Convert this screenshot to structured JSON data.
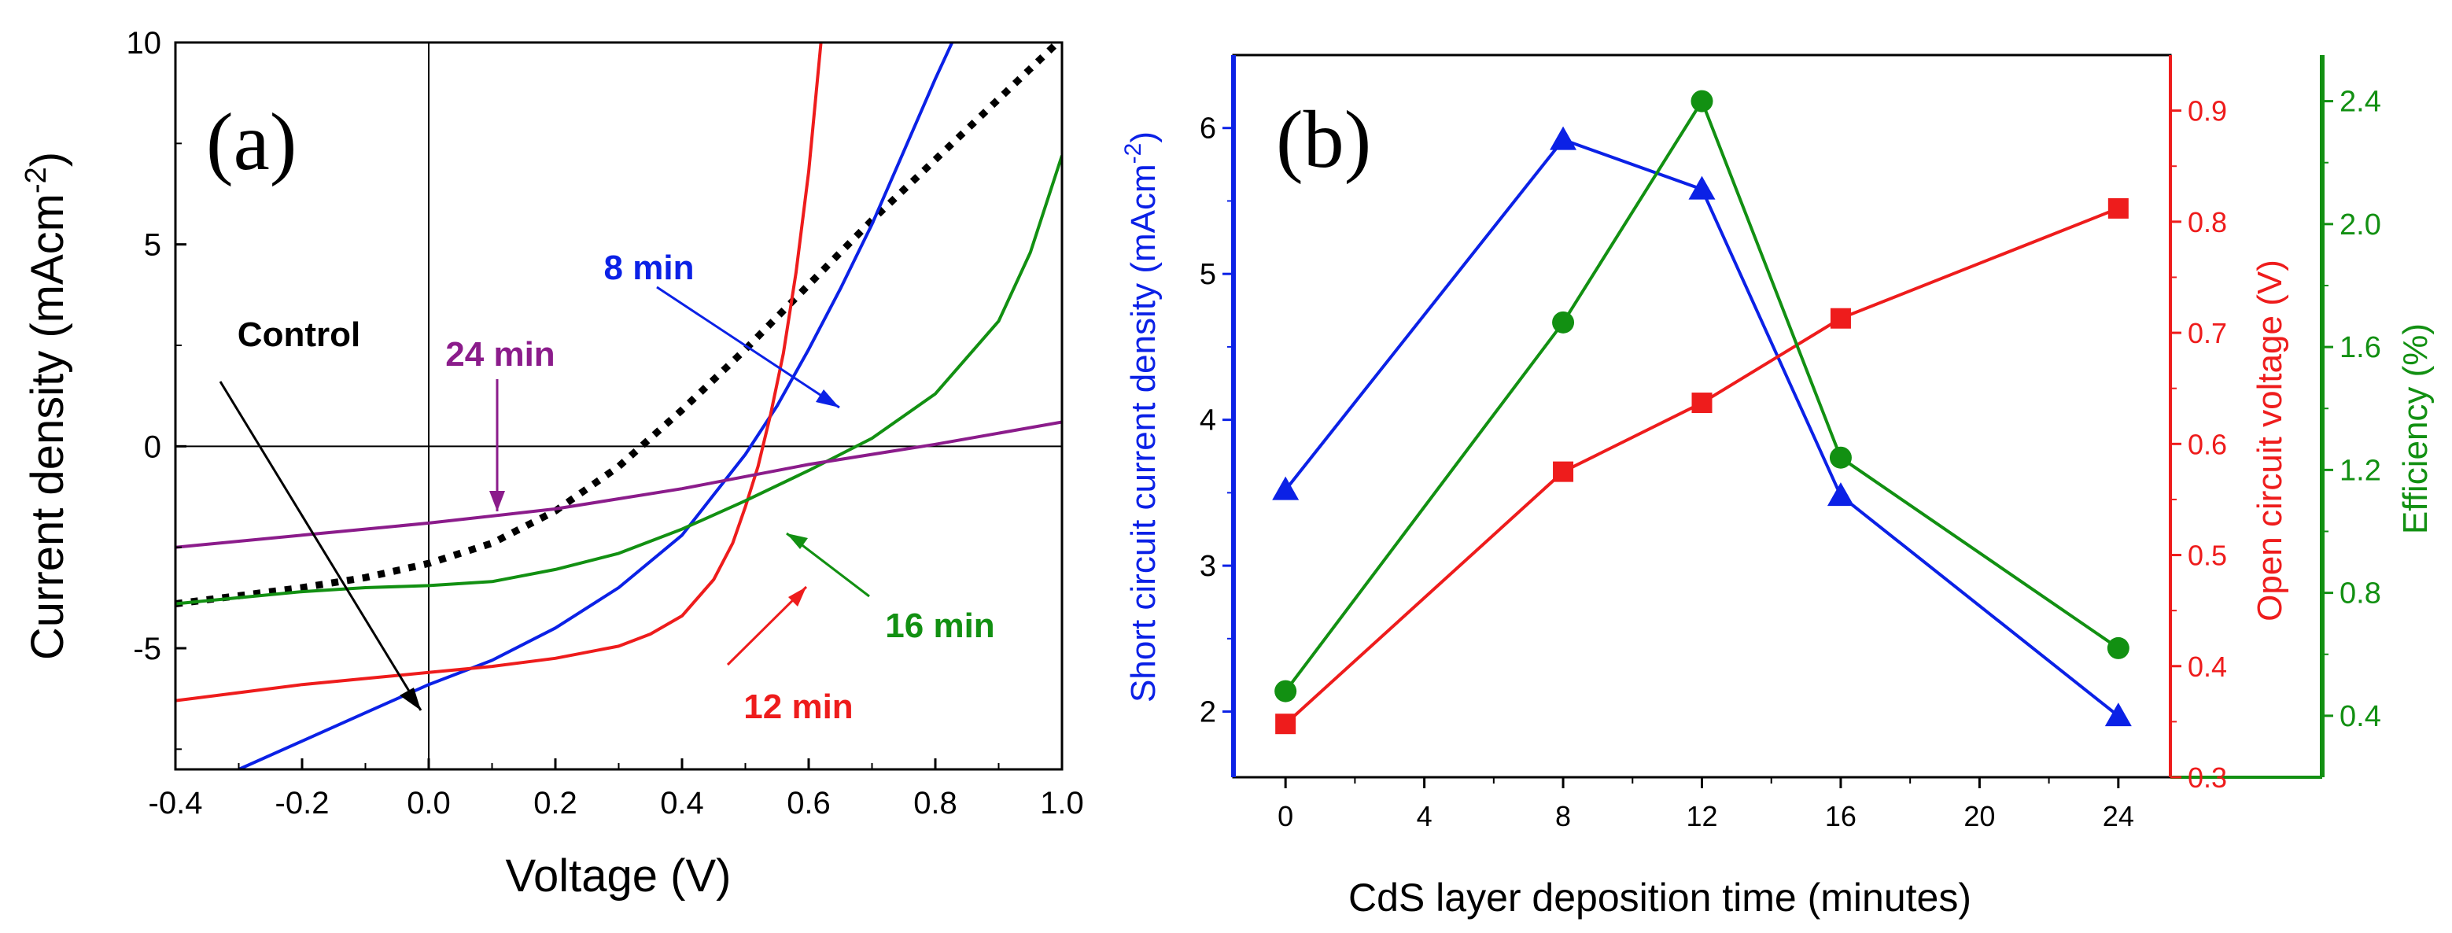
{
  "chart_data": [
    {
      "type": "line",
      "panel_label": "(a)",
      "xlabel": "Voltage (V)",
      "ylabel_main": "Current density (mAcm",
      "ylabel_sup": "-2",
      "ylabel_tail": ")",
      "xlim": [
        -0.4,
        1.0
      ],
      "ylim": [
        -8,
        10
      ],
      "x_ticks": [
        -0.4,
        -0.2,
        0.0,
        0.2,
        0.4,
        0.6,
        0.8,
        1.0
      ],
      "x_tick_labels": [
        "-0.4",
        "-0.2",
        "0.0",
        "0.2",
        "0.4",
        "0.6",
        "0.8",
        "1.0"
      ],
      "y_ticks": [
        -5,
        0,
        5,
        10
      ],
      "y_tick_labels": [
        "-5",
        "0",
        "5",
        "10"
      ],
      "series": [
        {
          "name": "Control",
          "color": "#000000",
          "style": "dotted",
          "x": [
            -0.4,
            -0.3,
            -0.2,
            -0.1,
            0.0,
            0.1,
            0.2,
            0.3,
            0.4,
            0.5,
            0.6,
            0.7,
            0.8,
            0.9,
            1.0
          ],
          "y": [
            -3.9,
            -3.7,
            -3.5,
            -3.25,
            -2.9,
            -2.4,
            -1.6,
            -0.5,
            0.9,
            2.4,
            4.0,
            5.6,
            7.1,
            8.6,
            10.1
          ]
        },
        {
          "name": "8 min",
          "color": "#0b21e6",
          "style": "solid",
          "x": [
            -0.3,
            -0.2,
            -0.1,
            0.0,
            0.1,
            0.2,
            0.3,
            0.4,
            0.45,
            0.5,
            0.55,
            0.6,
            0.65,
            0.7,
            0.75,
            0.8,
            0.85
          ],
          "y": [
            -8.0,
            -7.3,
            -6.6,
            -5.9,
            -5.3,
            -4.5,
            -3.5,
            -2.2,
            -1.2,
            -0.2,
            1.0,
            2.4,
            3.9,
            5.5,
            7.3,
            9.1,
            10.8
          ]
        },
        {
          "name": "12 min",
          "color": "#ee1c1c",
          "style": "solid",
          "x": [
            -0.4,
            -0.3,
            -0.2,
            -0.1,
            0.0,
            0.1,
            0.2,
            0.3,
            0.35,
            0.4,
            0.45,
            0.48,
            0.5,
            0.52,
            0.54,
            0.56,
            0.58,
            0.6,
            0.62
          ],
          "y": [
            -6.3,
            -6.1,
            -5.9,
            -5.75,
            -5.6,
            -5.45,
            -5.25,
            -4.95,
            -4.65,
            -4.2,
            -3.3,
            -2.4,
            -1.5,
            -0.5,
            0.8,
            2.3,
            4.3,
            6.8,
            10.1
          ]
        },
        {
          "name": "16 min",
          "color": "#129012",
          "style": "solid",
          "x": [
            -0.4,
            -0.3,
            -0.2,
            -0.1,
            0.0,
            0.1,
            0.2,
            0.3,
            0.4,
            0.5,
            0.6,
            0.7,
            0.8,
            0.9,
            0.95,
            1.0
          ],
          "y": [
            -3.9,
            -3.75,
            -3.6,
            -3.5,
            -3.45,
            -3.35,
            -3.05,
            -2.65,
            -2.05,
            -1.35,
            -0.6,
            0.2,
            1.3,
            3.1,
            4.8,
            7.2
          ]
        },
        {
          "name": "24 min",
          "color": "#8b1c8b",
          "style": "solid",
          "x": [
            -0.4,
            -0.2,
            0.0,
            0.2,
            0.4,
            0.6,
            0.8,
            1.0
          ],
          "y": [
            -2.5,
            -2.2,
            -1.9,
            -1.55,
            -1.05,
            -0.45,
            0.05,
            0.6
          ]
        }
      ],
      "annotations": [
        {
          "text": "Control",
          "color": "#000000"
        },
        {
          "text": "8 min",
          "color": "#0b21e6"
        },
        {
          "text": "24 min",
          "color": "#8b1c8b"
        },
        {
          "text": "12 min",
          "color": "#ee1c1c"
        },
        {
          "text": "16 min",
          "color": "#129012"
        }
      ]
    },
    {
      "type": "line",
      "panel_label": "(b)",
      "xlabel": "CdS layer deposition time (minutes)",
      "ylabel_left_main": "Short circuit current density (mAcm",
      "ylabel_left_sup": "-2",
      "ylabel_left_tail": ")",
      "ylabel_right1": "Open circuit voltage (V)",
      "ylabel_right2": "Efficiency (%)",
      "xlim": [
        -1.5,
        25.5
      ],
      "x_ticks": [
        0,
        4,
        8,
        12,
        16,
        20,
        24
      ],
      "x_tick_labels": [
        "0",
        "4",
        "8",
        "12",
        "16",
        "20",
        "24"
      ],
      "y_left_lim": [
        1.55,
        6.5
      ],
      "y_left_ticks": [
        2,
        3,
        4,
        5,
        6
      ],
      "y_left_tick_labels": [
        "2",
        "3",
        "4",
        "5",
        "6"
      ],
      "y_right1_lim": [
        0.3,
        0.95
      ],
      "y_right1_ticks": [
        0.3,
        0.4,
        0.5,
        0.6,
        0.7,
        0.8,
        0.9
      ],
      "y_right1_tick_labels": [
        "0.3",
        "0.4",
        "0.5",
        "0.6",
        "0.7",
        "0.8",
        "0.9"
      ],
      "y_right2_lim": [
        0.2,
        2.55
      ],
      "y_right2_ticks": [
        0.4,
        0.8,
        1.2,
        1.6,
        2.0,
        2.4
      ],
      "y_right2_tick_labels": [
        "0.4",
        "0.8",
        "1.2",
        "1.6",
        "2.0",
        "2.4"
      ],
      "series": [
        {
          "name": "Short circuit current density",
          "axis": "left",
          "color": "#0b21e6",
          "marker": "triangle",
          "x": [
            0,
            8,
            12,
            16,
            24
          ],
          "y": [
            3.52,
            5.92,
            5.58,
            3.48,
            1.97
          ]
        },
        {
          "name": "Open circuit voltage",
          "axis": "right1",
          "color": "#ee1c1c",
          "marker": "square",
          "x": [
            0,
            8,
            12,
            16,
            24
          ],
          "y": [
            0.348,
            0.575,
            0.637,
            0.713,
            0.812
          ]
        },
        {
          "name": "Efficiency",
          "axis": "right2",
          "color": "#129012",
          "marker": "circle",
          "x": [
            0,
            8,
            12,
            16,
            24
          ],
          "y": [
            0.48,
            1.68,
            2.4,
            1.24,
            0.62
          ]
        }
      ],
      "axis_colors": {
        "left": "#0b21e6",
        "right1": "#ee1c1c",
        "right2": "#129012"
      }
    }
  ]
}
